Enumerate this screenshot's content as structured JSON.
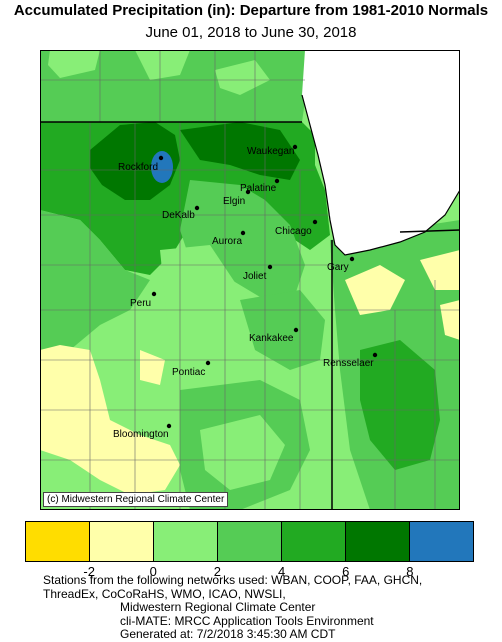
{
  "header": {
    "title": "Accumulated Precipitation (in): Departure from 1981-2010 Normals",
    "subtitle": "June 01, 2018 to June 30, 2018"
  },
  "map": {
    "credit": "(c) Midwestern Regional Climate Center",
    "cities": [
      {
        "name": "Rockford"
      },
      {
        "name": "Waukegan"
      },
      {
        "name": "Palatine"
      },
      {
        "name": "Elgin"
      },
      {
        "name": "DeKalb"
      },
      {
        "name": "Chicago"
      },
      {
        "name": "Aurora"
      },
      {
        "name": "Joliet"
      },
      {
        "name": "Gary"
      },
      {
        "name": "Peru"
      },
      {
        "name": "Kankakee"
      },
      {
        "name": "Rensselaer"
      },
      {
        "name": "Pontiac"
      },
      {
        "name": "Bloomington"
      }
    ]
  },
  "legend": {
    "colors": [
      "#ffdd00",
      "#ffffaa",
      "#88ee77",
      "#55cc55",
      "#22aa22",
      "#007700",
      "#2277bb"
    ],
    "ticks": [
      "-2",
      "0",
      "2",
      "4",
      "6",
      "8"
    ]
  },
  "footer": {
    "line1": "Stations from the following networks used: WBAN, COOP, FAA, GHCN,",
    "line2": "ThreadEx, CoCoRaHS, WMO, ICAO, NWSLI,",
    "line3": "Midwestern Regional Climate Center",
    "line4": "cli-MATE: MRCC Application Tools Environment",
    "line5": "Generated at: 7/2/2018 3:45:30 AM CDT"
  }
}
